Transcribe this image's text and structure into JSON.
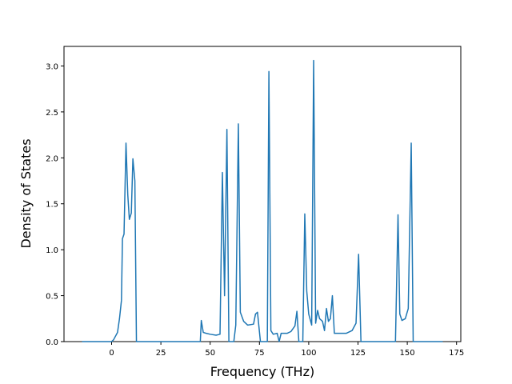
{
  "chart_data": {
    "type": "line",
    "x_label": "Frequency (THz)",
    "y_label": "Density of States",
    "color": "#1f77b4",
    "x": [
      -15,
      0,
      1,
      3,
      4,
      5,
      5.5,
      6.3,
      7.3,
      8.2,
      9,
      10,
      10.8,
      11.8,
      12.6,
      45,
      45.5,
      46.5,
      48,
      50,
      53,
      55,
      56.2,
      57.3,
      58.5,
      59.5,
      62,
      63,
      64.3,
      65.3,
      67,
      69,
      72,
      73,
      74,
      75.5,
      79,
      79.8,
      80.8,
      82,
      84,
      85,
      86,
      89,
      91,
      93,
      94,
      95,
      97,
      98,
      99,
      100,
      101.5,
      102.5,
      103.5,
      104.5,
      105.5,
      107,
      108,
      109,
      110,
      111,
      112,
      113,
      116,
      119,
      122,
      124,
      125.3,
      126.5,
      144,
      145.3,
      146.2,
      147.3,
      149,
      150.5,
      152,
      153,
      168
    ],
    "values": [
      0,
      0,
      0.02,
      0.1,
      0.25,
      0.45,
      1.12,
      1.17,
      2.16,
      1.6,
      1.33,
      1.4,
      1.99,
      1.75,
      0,
      0,
      0.23,
      0.1,
      0.09,
      0.08,
      0.07,
      0.08,
      1.84,
      0.5,
      2.31,
      0,
      0,
      0.18,
      2.37,
      0.32,
      0.22,
      0.18,
      0.19,
      0.3,
      0.32,
      0,
      0,
      2.94,
      0.12,
      0.08,
      0.09,
      0,
      0.09,
      0.09,
      0.11,
      0.17,
      0.33,
      0,
      0,
      1.39,
      0.55,
      0.3,
      0.18,
      3.06,
      0.2,
      0.34,
      0.25,
      0.22,
      0.12,
      0.36,
      0.22,
      0.25,
      0.5,
      0.09,
      0.09,
      0.09,
      0.12,
      0.2,
      0.95,
      0,
      0,
      1.38,
      0.3,
      0.23,
      0.25,
      0.36,
      2.16,
      0,
      0
    ],
    "xlim": [
      -24.15,
      177.15
    ],
    "xticks": [
      0,
      25,
      50,
      75,
      100,
      125,
      150,
      175
    ],
    "ylim": [
      0,
      3.213
    ],
    "yticks": [
      {
        "value": 0,
        "label": "0.0"
      },
      {
        "value": 0.5,
        "label": "0.5"
      },
      {
        "value": 1,
        "label": "1.0"
      },
      {
        "value": 1.5,
        "label": "1.5"
      },
      {
        "value": 2,
        "label": "2.0"
      },
      {
        "value": 2.5,
        "label": "2.5"
      },
      {
        "value": 3,
        "label": "3.0"
      }
    ]
  }
}
